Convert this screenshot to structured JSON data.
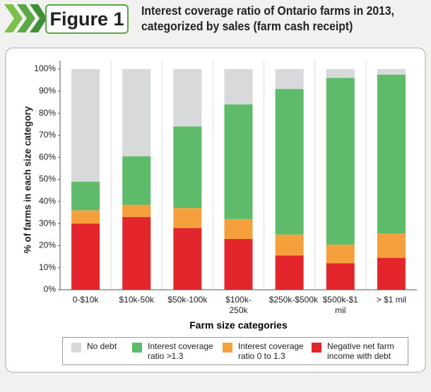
{
  "figure_label": "Figure 1",
  "chart_data": {
    "type": "stacked_bar",
    "title": "Interest coverage ratio of Ontario farms in 2013, categorized by sales (farm cash receipt)",
    "x_label": "Farm size categories",
    "y_label": "% of farms in each size category",
    "categories": [
      "0-$10k",
      "$10k-50k",
      "$50k-100k",
      "$100k-250k",
      "$250k-$500k",
      "$500k-$1 mil",
      "> $1 mil"
    ],
    "series": [
      {
        "name": "Negative net farm income with debt",
        "color": "#e3262b",
        "values": [
          30,
          33,
          28,
          23,
          15.5,
          12,
          14.5
        ]
      },
      {
        "name": "Interest coverage ratio 0 to 1.3",
        "color": "#f5a03c",
        "values": [
          6,
          5.5,
          9,
          9,
          9.5,
          8.5,
          11
        ]
      },
      {
        "name": "Interest coverage ratio >1.3",
        "color": "#5dbb6a",
        "values": [
          13,
          22,
          37,
          52,
          66,
          75.5,
          72
        ]
      },
      {
        "name": "No debt",
        "color": "#d8d9db",
        "values": [
          51,
          39.5,
          26,
          16,
          9,
          4,
          2.5
        ]
      }
    ],
    "legend_order": [
      3,
      2,
      1,
      0
    ],
    "ylim": [
      0,
      100
    ],
    "yticks": [
      {
        "value": 0,
        "label": "0%"
      },
      {
        "value": 10,
        "label": "10%"
      },
      {
        "value": 20,
        "label": "20%"
      },
      {
        "value": 30,
        "label": "30%"
      },
      {
        "value": 40,
        "label": "40%"
      },
      {
        "value": 50,
        "label": "50%"
      },
      {
        "value": 60,
        "label": "60%"
      },
      {
        "value": 70,
        "label": "70%"
      },
      {
        "value": 80,
        "label": "80%"
      },
      {
        "value": 90,
        "label": "90%"
      },
      {
        "value": 100,
        "label": "100%"
      }
    ]
  }
}
